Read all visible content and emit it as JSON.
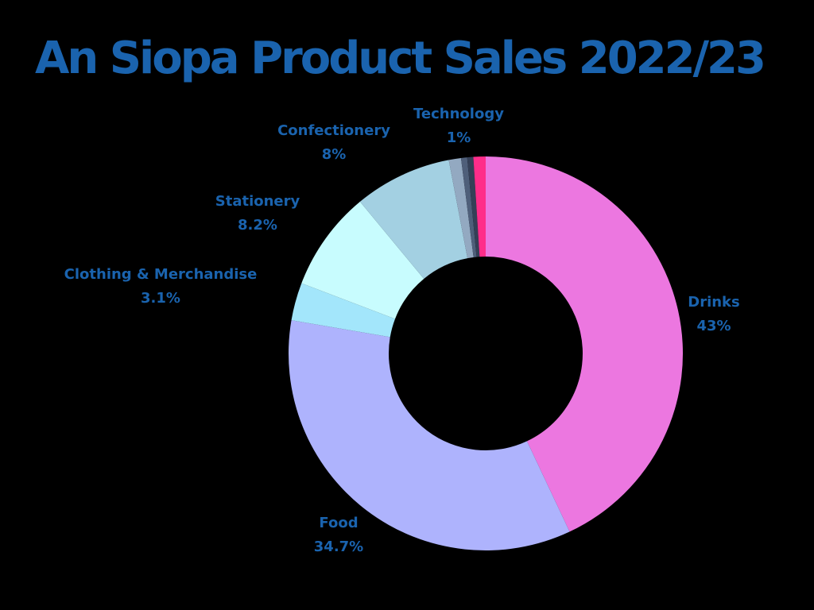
{
  "chart_data": {
    "type": "pie",
    "title": "An Siopa Product Sales 2022/23",
    "slices": [
      {
        "label": "Drinks",
        "value_label": "43%",
        "value": 43.0,
        "color": "#ec77e0"
      },
      {
        "label": "Food",
        "value_label": "34.7%",
        "value": 34.7,
        "color": "#aeb3fd"
      },
      {
        "label": "Clothing & Merchandise",
        "value_label": "3.1%",
        "value": 3.1,
        "color": "#a3e6fb"
      },
      {
        "label": "Stationery",
        "value_label": "8.2%",
        "value": 8.2,
        "color": "#c8fcfe"
      },
      {
        "label": "Confectionery",
        "value_label": "8%",
        "value": 8.0,
        "color": "#a3d0e2"
      },
      {
        "value": 1.0,
        "color": "#93a9c1"
      },
      {
        "value": 0.5,
        "color": "#4f5f7a"
      },
      {
        "value": 0.5,
        "color": "#354057"
      },
      {
        "label": "Technology",
        "value_label": "1%",
        "value": 1.0,
        "color": "#ff2d8a"
      }
    ],
    "legend": "none",
    "text_color": "#1a63ae",
    "background": "#000000"
  }
}
